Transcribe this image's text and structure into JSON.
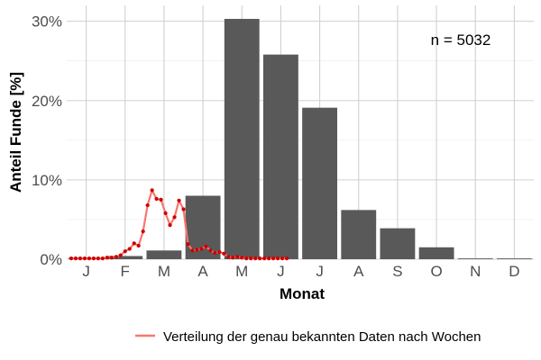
{
  "chart_data": {
    "type": "bar",
    "xlabel": "Monat",
    "ylabel": "Anteil Funde [%]",
    "ylim": [
      0,
      32
    ],
    "y_ticks": [
      0,
      10,
      20,
      30
    ],
    "y_tick_labels": [
      "0%",
      "10%",
      "20%",
      "30%"
    ],
    "categories": [
      "J",
      "F",
      "M",
      "A",
      "M",
      "J",
      "J",
      "A",
      "S",
      "O",
      "N",
      "D"
    ],
    "values": [
      0.2,
      0.4,
      1.1,
      8.0,
      30.3,
      25.8,
      19.1,
      6.2,
      3.9,
      1.5,
      0.1,
      0.1
    ],
    "annotation": "n = 5032",
    "grid": true,
    "bar_color": "#595959",
    "series": [
      {
        "name": "Verteilung der genau bekannten Daten nach Wochen",
        "type": "line",
        "color": "#f8766d",
        "point_color": "#cc0000",
        "x": [
          0.5,
          1.0,
          1.5,
          2.0,
          2.5,
          3.0,
          3.5,
          4.0,
          4.5,
          5.0,
          5.5,
          6.0,
          6.5,
          7.0,
          7.5,
          8.0,
          8.5,
          9.0,
          9.5,
          10.0,
          10.5,
          11.0,
          11.5,
          12.0,
          12.5,
          13.0,
          13.5,
          14.0,
          14.5,
          15.0,
          15.5,
          16.0,
          16.5,
          17.0,
          17.5,
          18.0,
          18.5,
          19.0,
          19.5,
          20.0,
          20.5,
          21.0,
          21.5,
          22.0,
          22.5,
          23.0,
          23.5,
          24.0,
          24.5
        ],
        "values": [
          0.1,
          0.1,
          0.1,
          0.1,
          0.1,
          0.1,
          0.1,
          0.1,
          0.2,
          0.2,
          0.3,
          0.5,
          1.0,
          1.3,
          2.0,
          1.7,
          3.5,
          6.8,
          8.7,
          7.6,
          7.5,
          5.8,
          4.3,
          5.3,
          7.4,
          6.3,
          1.9,
          1.1,
          1.2,
          1.3,
          1.6,
          1.1,
          0.8,
          0.9,
          0.7,
          0.3,
          0.2,
          0.3,
          0.2,
          0.1,
          0.1,
          0.1,
          0.1,
          0.1,
          0.1,
          0.1,
          0.1,
          0.1,
          0.1
        ]
      }
    ],
    "legend": {
      "position": "bottom",
      "label": "Verteilung der genau bekannten Daten nach Wochen"
    }
  }
}
